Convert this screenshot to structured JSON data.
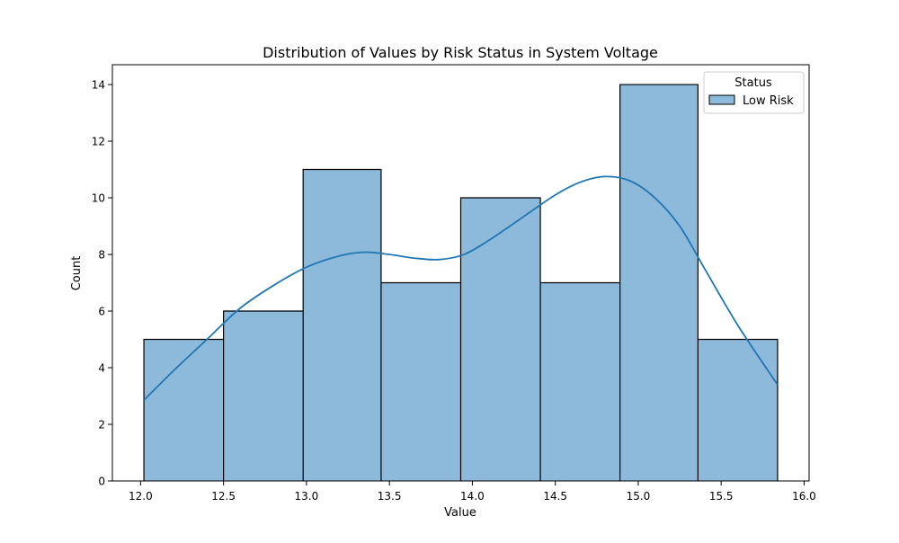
{
  "chart_data": {
    "type": "bar",
    "title": "Distribution of Values by Risk Status in System Voltage",
    "xlabel": "Value",
    "ylabel": "Count",
    "xlim": [
      11.83,
      16.03
    ],
    "ylim": [
      0,
      14.7
    ],
    "xticks": [
      12.0,
      12.5,
      13.0,
      13.5,
      14.0,
      14.5,
      15.0,
      15.5,
      16.0
    ],
    "xtick_labels": [
      "12.0",
      "12.5",
      "13.0",
      "13.5",
      "14.0",
      "14.5",
      "15.0",
      "15.5",
      "16.0"
    ],
    "yticks": [
      0,
      2,
      4,
      6,
      8,
      10,
      12,
      14
    ],
    "ytick_labels": [
      "0",
      "2",
      "4",
      "6",
      "8",
      "10",
      "12",
      "14"
    ],
    "grid": false,
    "legend": {
      "title": "Status",
      "placement": "top-right",
      "entries": [
        "Low Risk"
      ]
    },
    "series": [
      {
        "name": "Low Risk",
        "type": "histogram",
        "bin_edges": [
          12.02,
          12.5,
          12.98,
          13.45,
          13.93,
          14.41,
          14.89,
          15.36,
          15.84
        ],
        "counts": [
          5,
          6,
          11,
          7,
          10,
          7,
          14,
          5
        ],
        "fill_color": "#8db9da",
        "edge_color": "#000000"
      },
      {
        "name": "Low Risk",
        "type": "kde",
        "color": "#1f77b4",
        "x": [
          12.02,
          12.2,
          12.4,
          12.6,
          12.8,
          13.0,
          13.2,
          13.35,
          13.5,
          13.65,
          13.8,
          13.95,
          14.1,
          14.3,
          14.5,
          14.65,
          14.8,
          14.95,
          15.1,
          15.25,
          15.4,
          15.6,
          15.84
        ],
        "y": [
          2.85,
          3.9,
          5.0,
          6.1,
          6.9,
          7.55,
          7.95,
          8.08,
          8.0,
          7.87,
          7.82,
          8.0,
          8.5,
          9.3,
          10.1,
          10.55,
          10.75,
          10.6,
          10.0,
          9.0,
          7.5,
          5.5,
          3.4
        ]
      }
    ]
  }
}
